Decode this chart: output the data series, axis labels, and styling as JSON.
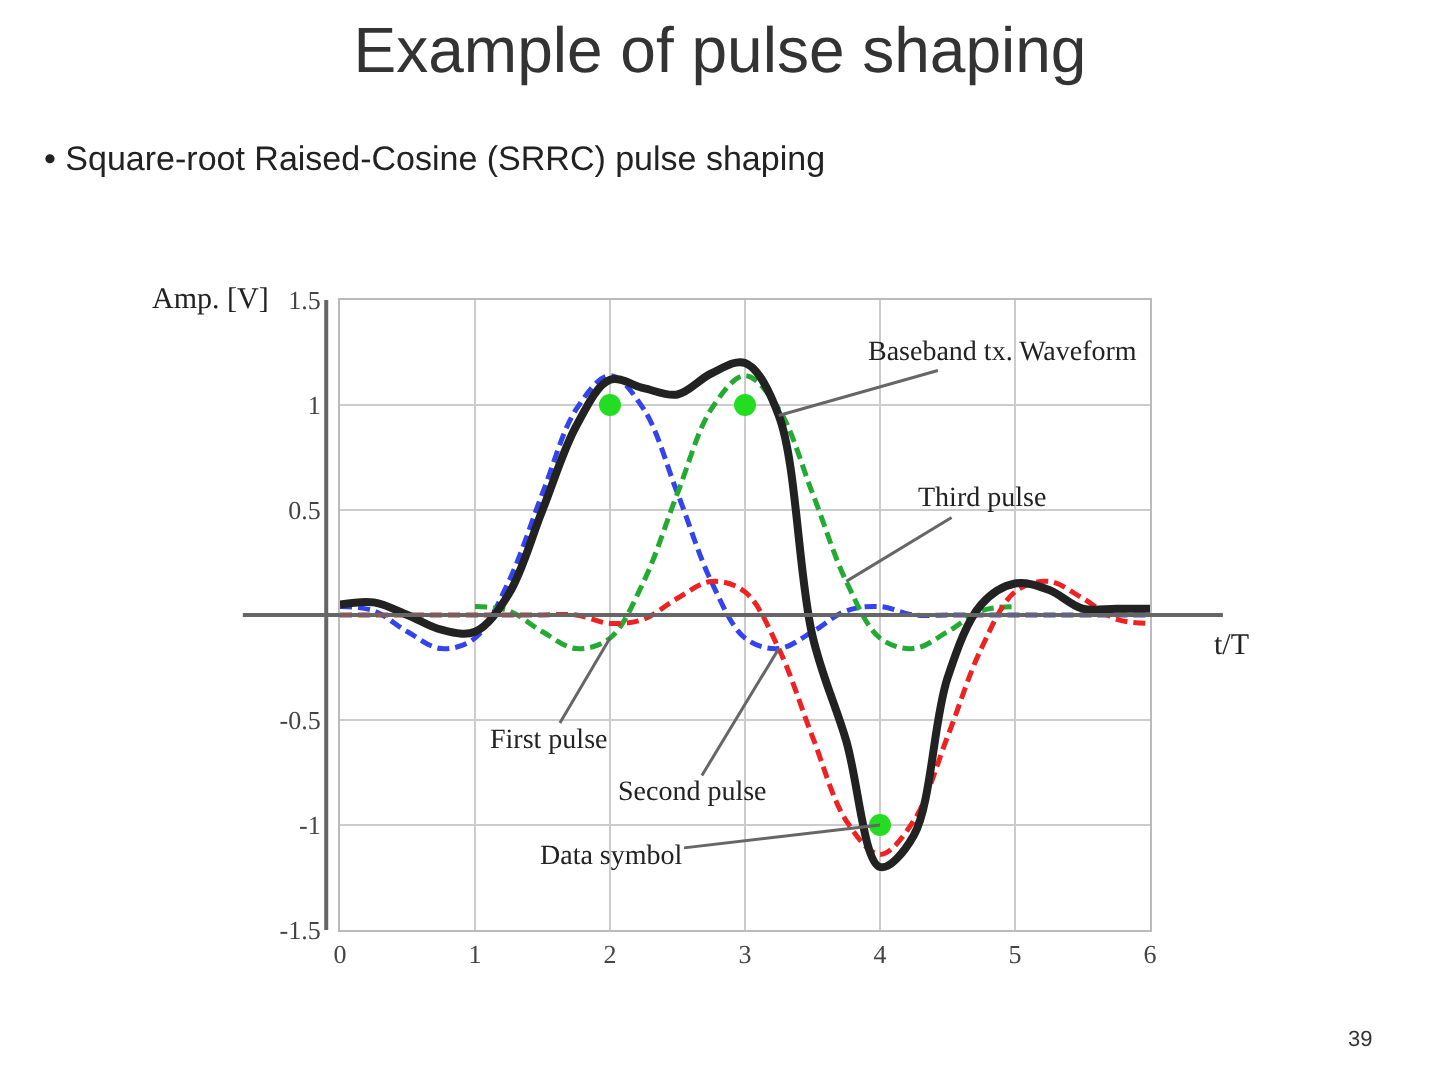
{
  "chart_data": {
    "type": "line",
    "title": "Example of pulse shaping",
    "subtitle": "• Square-root Raised-Cosine (SRRC) pulse shaping",
    "xlabel": "t/T",
    "ylabel": "Amp. [V]",
    "x": [
      0,
      0.25,
      0.5,
      0.75,
      1,
      1.25,
      1.5,
      1.75,
      2,
      2.25,
      2.5,
      2.75,
      3,
      3.25,
      3.5,
      3.75,
      4,
      4.25,
      4.5,
      4.75,
      5,
      5.25,
      5.5,
      5.75,
      6
    ],
    "series": [
      {
        "color": "#3344ee",
        "line_style": "dashed",
        "values": [
          0.04,
          0.02,
          -0.08,
          -0.16,
          -0.11,
          0.16,
          0.58,
          0.98,
          1.14,
          0.98,
          0.58,
          0.16,
          -0.11,
          -0.16,
          -0.08,
          0.02,
          0.04,
          0,
          0,
          0,
          0,
          0,
          0,
          0,
          0
        ]
      },
      {
        "color": "#22aa33",
        "line_style": "dashed",
        "values": [
          null,
          null,
          null,
          null,
          0.04,
          0.02,
          -0.08,
          -0.16,
          -0.11,
          0.16,
          0.58,
          0.98,
          1.14,
          0.98,
          0.58,
          0.16,
          -0.11,
          -0.16,
          -0.08,
          0.02,
          0.04,
          null,
          null,
          null,
          null
        ]
      },
      {
        "color": "#ee2222",
        "line_style": "dashed",
        "values": [
          0,
          0,
          0,
          0,
          0,
          0,
          0,
          0,
          -0.04,
          -0.02,
          0.08,
          0.16,
          0.11,
          -0.16,
          -0.58,
          -0.98,
          -1.14,
          -0.98,
          -0.58,
          -0.16,
          0.11,
          0.16,
          0.08,
          -0.02,
          -0.04
        ]
      },
      {
        "color": "#222222",
        "line_style": "solid",
        "values": [
          0.05,
          0.06,
          0,
          -0.07,
          -0.08,
          0.1,
          0.5,
          0.9,
          1.12,
          1.08,
          1.05,
          1.15,
          1.2,
          0.95,
          -0.1,
          -0.6,
          -1.2,
          -1.05,
          -0.3,
          0.05,
          0.15,
          0.12,
          0.03,
          0.03,
          0.03
        ]
      },
      {
        "type": "scatter",
        "marker": "circle",
        "color": "#22dd22",
        "x": [
          2,
          3,
          4
        ],
        "values": [
          1,
          1,
          -1
        ]
      }
    ],
    "xlim": [
      0,
      6
    ],
    "ylim": [
      -1.5,
      1.5
    ],
    "xticks": [
      0,
      1,
      2,
      3,
      4,
      5,
      6
    ],
    "yticks": [
      -1.5,
      -1,
      -0.5,
      {
        "value": 0,
        "label": null
      },
      0.5,
      1,
      1.5
    ],
    "grid": true,
    "marker": "none",
    "annotations": [
      {
        "text": "Baseband tx. Waveform",
        "x": 3.25,
        "y": 0.95
      },
      {
        "text": "Third pulse",
        "x": 3.75,
        "y": 0.16
      },
      {
        "text": "First pulse",
        "x": 2,
        "y": -0.11
      },
      {
        "text": "Second pulse",
        "x": 3.25,
        "y": -0.16
      },
      {
        "text": "Data symbol",
        "x": 4,
        "y": -1
      },
      "39"
    ]
  }
}
